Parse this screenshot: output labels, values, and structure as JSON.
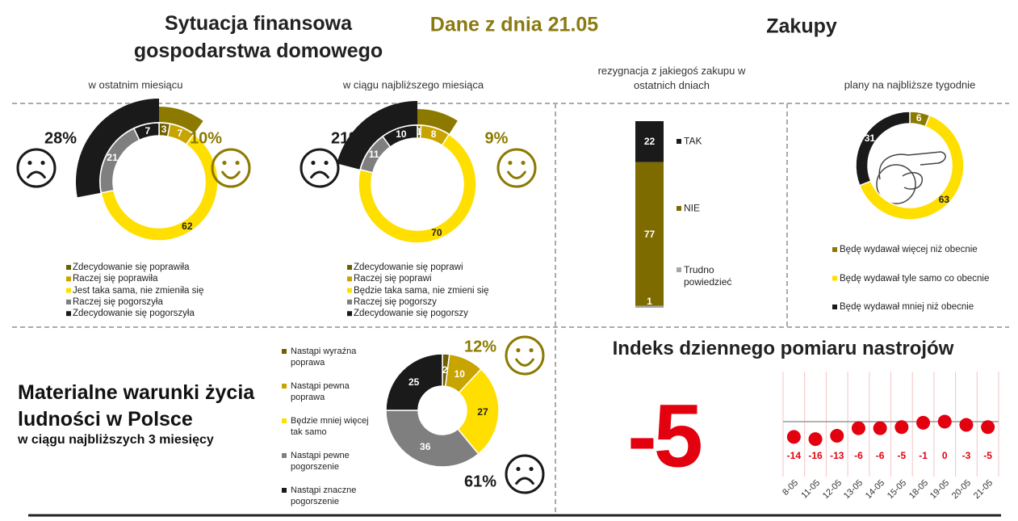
{
  "header": {
    "title": "Sytuacja finansowa gospodarstwa domowego",
    "date": "Dane z dnia 21.05",
    "section": "Zakupy"
  },
  "chart_data": [
    {
      "type": "donut",
      "subtitle": "w ostatnim miesiącu",
      "categories": [
        "Zdecydowanie się poprawiła",
        "Raczej się poprawiła",
        "Jest taka sama, nie zmieniła się",
        "Raczej się pogorszyła",
        "Zdecydowanie się pogorszyła"
      ],
      "values": [
        3,
        7,
        62,
        21,
        7
      ],
      "colors": [
        "#6e6000",
        "#c8a400",
        "#ffdf00",
        "#7f7f7f",
        "#1a1a1a"
      ],
      "summary": {
        "values": [
          28,
          10
        ],
        "value_labels": [
          "28%",
          "10%"
        ],
        "colors": [
          "#1a1a1a",
          "#8c7a00"
        ]
      }
    },
    {
      "type": "donut",
      "subtitle": "w ciągu najbliższego miesiąca",
      "categories": [
        "Zdecydowanie się poprawi",
        "Raczej się poprawi",
        "Będzie taka sama, nie zmieni się",
        "Raczej się pogorszy",
        "Zdecydowanie się pogorszy"
      ],
      "values": [
        1,
        8,
        70,
        11,
        10
      ],
      "colors": [
        "#6e6000",
        "#c8a400",
        "#ffdf00",
        "#7f7f7f",
        "#1a1a1a"
      ],
      "summary": {
        "values": [
          21,
          9
        ],
        "value_labels": [
          "21%",
          "9%"
        ],
        "colors": [
          "#1a1a1a",
          "#8c7a00"
        ]
      }
    },
    {
      "type": "stacked_bar",
      "subtitle": "rezygnacja z jakiegoś zakupu w ostatnich dniach",
      "series": [
        {
          "name": "TAK",
          "color": "#1a1a1a",
          "values": [
            22
          ]
        },
        {
          "name": "NIE",
          "color": "#7d6b00",
          "values": [
            77
          ]
        },
        {
          "name": "Trudno powiedzieć",
          "color": "#a6a6a6",
          "values": [
            1
          ]
        }
      ]
    },
    {
      "type": "donut",
      "subtitle": "plany na najbliższe tygodnie",
      "categories": [
        "Będę wydawał więcej niż obecnie",
        "Będę wydawał tyle samo co obecnie",
        "Będę wydawał mniej niż obecnie"
      ],
      "values": [
        6,
        63,
        31
      ],
      "colors": [
        "#8c7a00",
        "#ffdf00",
        "#1a1a1a"
      ]
    },
    {
      "type": "donut",
      "title": "Materialne warunki życia ludności w Polsce",
      "subtitle": "w ciągu najbliższych 3 miesięcy",
      "categories": [
        "Nastąpi wyraźna poprawa",
        "Nastąpi pewna poprawa",
        "Będzie mniej więcej tak samo",
        "Nastąpi pewne pogorszenie",
        "Nastąpi znaczne pogorszenie"
      ],
      "values": [
        2,
        10,
        27,
        36,
        25
      ],
      "colors": [
        "#6e6000",
        "#c8a400",
        "#ffdf00",
        "#7f7f7f",
        "#1a1a1a"
      ],
      "summary": {
        "values": [
          61,
          12
        ],
        "value_labels": [
          "61%",
          "12%"
        ],
        "colors": [
          "#1a1a1a",
          "#8c7a00"
        ]
      }
    },
    {
      "type": "dot",
      "title": "Indeks dziennego pomiaru nastrojów",
      "index_value": -5,
      "categories": [
        "8-05",
        "11-05",
        "12-05",
        "13-05",
        "14-05",
        "15-05",
        "18-05",
        "19-05",
        "20-05",
        "21-05"
      ],
      "values": [
        -14,
        -16,
        -13,
        -6,
        -6,
        -5,
        -1,
        0,
        -3,
        -5
      ],
      "color": "#e3000f"
    }
  ]
}
